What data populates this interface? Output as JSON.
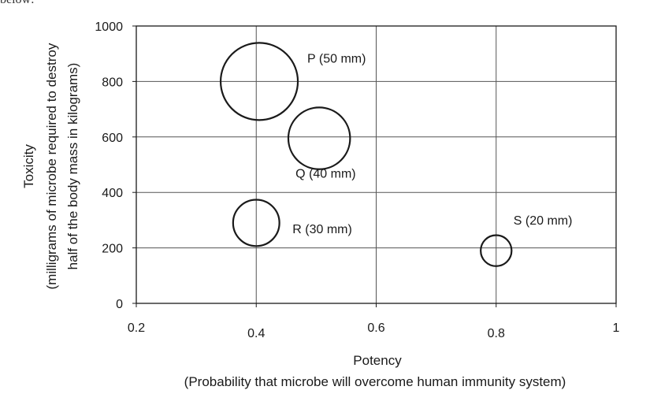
{
  "top_fragment": "below:",
  "chart_data": {
    "type": "scatter",
    "xlabel": "Potency",
    "xlabel_sub": "(Probability that microbe will overcome human immunity system)",
    "ylabel": "Toxicity",
    "ylabel_sub1": "(milligrams of microbe required to destroy",
    "ylabel_sub2": "half of the body mass in kilograms)",
    "xlim": [
      0.2,
      1
    ],
    "ylim": [
      0,
      1000
    ],
    "x_ticks": [
      0.2,
      0.4,
      0.6,
      0.8,
      1
    ],
    "x_tick_labels": [
      "0.2",
      "0.4",
      "0.6",
      "0.8",
      "1"
    ],
    "y_ticks": [
      0,
      200,
      400,
      600,
      800,
      1000
    ],
    "y_tick_labels": [
      "0",
      "200",
      "400",
      "600",
      "800",
      "1000"
    ],
    "grid": true,
    "points": [
      {
        "label": "P (50 mm)",
        "x": 0.405,
        "y": 800,
        "size_mm": 50
      },
      {
        "label": "Q (40 mm)",
        "x": 0.505,
        "y": 595,
        "size_mm": 40
      },
      {
        "label": "R (30 mm)",
        "x": 0.4,
        "y": 290,
        "size_mm": 30
      },
      {
        "label": "S (20 mm)",
        "x": 0.8,
        "y": 190,
        "size_mm": 20
      }
    ]
  }
}
